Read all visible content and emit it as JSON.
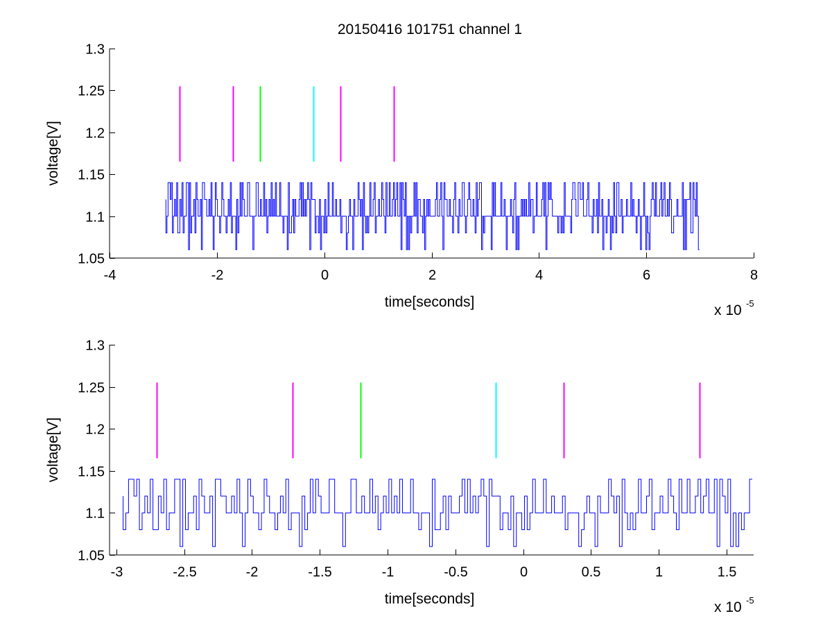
{
  "figure": {
    "title": "20150416 101751 channel 1",
    "background": "#ffffff"
  },
  "chart_data": [
    {
      "type": "line",
      "title": "20150416 101751 channel 1",
      "xlabel": "time[seconds]",
      "ylabel": "voltage[V]",
      "x_exponent_label": "x 10",
      "x_exponent": "-5",
      "xlim": [
        -4,
        8
      ],
      "ylim": [
        1.05,
        1.3
      ],
      "x_ticks": [
        -4,
        -2,
        0,
        2,
        4,
        6,
        8
      ],
      "x_tick_labels": [
        "-4",
        "-2",
        "0",
        "2",
        "4",
        "6",
        "8"
      ],
      "y_ticks": [
        1.05,
        1.1,
        1.15,
        1.2,
        1.25,
        1.3
      ],
      "y_tick_labels": [
        "1.05",
        "1.1",
        "1.15",
        "1.2",
        "1.25",
        "1.3"
      ],
      "grid": false,
      "signal": {
        "color": "#0000ff",
        "x_start": -2.95,
        "x_end": 7.0,
        "levels": [
          1.06,
          1.08,
          1.1,
          1.12,
          1.14
        ],
        "baseline": 1.1
      },
      "markers": [
        {
          "x": -2.7,
          "y0": 1.165,
          "y1": 1.255,
          "color": "#ff00ff"
        },
        {
          "x": -1.7,
          "y0": 1.165,
          "y1": 1.255,
          "color": "#ff00ff"
        },
        {
          "x": -1.2,
          "y0": 1.165,
          "y1": 1.255,
          "color": "#00ff00"
        },
        {
          "x": -0.2,
          "y0": 1.165,
          "y1": 1.255,
          "color": "#00ffff"
        },
        {
          "x": 0.3,
          "y0": 1.165,
          "y1": 1.255,
          "color": "#ff00ff"
        },
        {
          "x": 1.3,
          "y0": 1.165,
          "y1": 1.255,
          "color": "#ff00ff"
        }
      ]
    },
    {
      "type": "line",
      "title": "",
      "xlabel": "time[seconds]",
      "ylabel": "voltage[V]",
      "x_exponent_label": "x 10",
      "x_exponent": "-5",
      "xlim": [
        -3.05,
        1.7
      ],
      "ylim": [
        1.05,
        1.3
      ],
      "x_ticks": [
        -3,
        -2.5,
        -2,
        -1.5,
        -1,
        -0.5,
        0,
        0.5,
        1,
        1.5
      ],
      "x_tick_labels": [
        "-3",
        "-2.5",
        "-2",
        "-1.5",
        "-1",
        "-0.5",
        "0",
        "0.5",
        "1",
        "1.5"
      ],
      "y_ticks": [
        1.05,
        1.1,
        1.15,
        1.2,
        1.25,
        1.3
      ],
      "y_tick_labels": [
        "1.05",
        "1.1",
        "1.15",
        "1.2",
        "1.25",
        "1.3"
      ],
      "grid": false,
      "signal": {
        "color": "#0000ff",
        "x_start": -2.95,
        "x_end": 1.7,
        "levels": [
          1.06,
          1.08,
          1.1,
          1.12,
          1.14
        ],
        "baseline": 1.1
      },
      "markers": [
        {
          "x": -2.7,
          "y0": 1.165,
          "y1": 1.255,
          "color": "#ff00ff"
        },
        {
          "x": -1.7,
          "y0": 1.165,
          "y1": 1.255,
          "color": "#ff00ff"
        },
        {
          "x": -1.2,
          "y0": 1.165,
          "y1": 1.255,
          "color": "#00ff00"
        },
        {
          "x": -0.2,
          "y0": 1.165,
          "y1": 1.255,
          "color": "#00ffff"
        },
        {
          "x": 0.3,
          "y0": 1.165,
          "y1": 1.255,
          "color": "#ff00ff"
        },
        {
          "x": 1.3,
          "y0": 1.165,
          "y1": 1.255,
          "color": "#ff00ff"
        }
      ]
    }
  ]
}
